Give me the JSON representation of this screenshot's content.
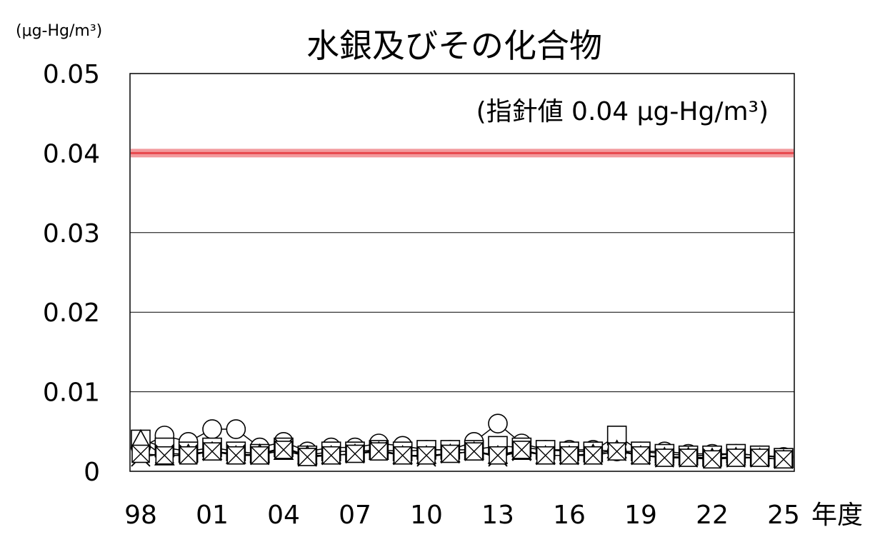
{
  "chart_data": {
    "type": "line",
    "title": "水銀及びその化合物",
    "ylabel": "(μg-Hg/m³)",
    "xlabel": "年度",
    "guideline_label": "(指針値 0.04 μg-Hg/m³)",
    "guideline_value": 0.04,
    "guideline_color": "#e8474c",
    "ylim": [
      0,
      0.05
    ],
    "yticks": [
      {
        "value": 0,
        "label": "0"
      },
      {
        "value": 0.01,
        "label": "0.01"
      },
      {
        "value": 0.02,
        "label": "0.02"
      },
      {
        "value": 0.03,
        "label": "0.03"
      },
      {
        "value": 0.04,
        "label": "0.04"
      },
      {
        "value": 0.05,
        "label": "0.05"
      }
    ],
    "x": [
      1998,
      1999,
      2000,
      2001,
      2002,
      2003,
      2004,
      2005,
      2006,
      2007,
      2008,
      2009,
      2010,
      2011,
      2012,
      2013,
      2014,
      2015,
      2016,
      2017,
      2018,
      2019,
      2020,
      2021,
      2022,
      2023,
      2024,
      2025
    ],
    "xticks": [
      {
        "value": 1998,
        "label": "98"
      },
      {
        "value": 2001,
        "label": "01"
      },
      {
        "value": 2004,
        "label": "04"
      },
      {
        "value": 2007,
        "label": "07"
      },
      {
        "value": 2010,
        "label": "10"
      },
      {
        "value": 2013,
        "label": "13"
      },
      {
        "value": 2016,
        "label": "16"
      },
      {
        "value": 2019,
        "label": "19"
      },
      {
        "value": 2022,
        "label": "22"
      },
      {
        "value": 2025,
        "label": "25"
      }
    ],
    "grid": true,
    "series": [
      {
        "marker": "circle",
        "values": [
          0.003,
          0.0045,
          0.0037,
          0.0053,
          0.0053,
          0.003,
          0.0037,
          0.0025,
          0.003,
          0.003,
          0.0035,
          0.0032,
          0.0027,
          0.0027,
          0.0037,
          0.006,
          0.0035,
          0.0027,
          0.0027,
          0.0027,
          0.0025,
          0.0025,
          0.0025,
          0.0022,
          0.0022,
          0.0022,
          0.002,
          0.0018
        ]
      },
      {
        "marker": "square",
        "values": [
          0.004,
          0.003,
          0.0025,
          0.003,
          0.0025,
          0.0022,
          0.003,
          0.002,
          0.0025,
          0.0025,
          0.0027,
          0.0025,
          0.0027,
          0.0027,
          0.0027,
          0.0032,
          0.003,
          0.0027,
          0.0025,
          0.0025,
          0.0045,
          0.0025,
          0.0022,
          0.002,
          0.002,
          0.0022,
          0.002,
          0.0017
        ]
      },
      {
        "marker": "triangle",
        "values": [
          0.004,
          0.0018,
          0.0022,
          0.0025,
          0.002,
          0.0022,
          0.0025,
          0.002,
          0.002,
          0.0022,
          0.0025,
          0.002,
          0.002,
          0.0022,
          0.0025,
          0.002,
          0.0025,
          0.002,
          0.002,
          0.0022,
          0.0027,
          0.002,
          0.0018,
          0.0018,
          0.0017,
          0.0018,
          0.0017,
          0.0015
        ]
      },
      {
        "marker": "x",
        "values": [
          0.0018,
          0.0022,
          0.0022,
          0.0025,
          0.0022,
          0.002,
          0.003,
          0.0018,
          0.002,
          0.0022,
          0.0027,
          0.002,
          0.0018,
          0.0022,
          0.0025,
          0.0018,
          0.0025,
          0.002,
          0.002,
          0.002,
          0.0025,
          0.002,
          0.0017,
          0.0017,
          0.0017,
          0.0017,
          0.0017,
          0.0015
        ]
      },
      {
        "marker": "boxcross",
        "values": [
          0.0022,
          0.002,
          0.002,
          0.0025,
          0.002,
          0.002,
          0.0027,
          0.0018,
          0.002,
          0.0022,
          0.0025,
          0.002,
          0.002,
          0.0022,
          0.0025,
          0.002,
          0.0027,
          0.002,
          0.002,
          0.002,
          0.0025,
          0.002,
          0.0017,
          0.0017,
          0.0015,
          0.0017,
          0.0017,
          0.0015
        ]
      }
    ]
  }
}
